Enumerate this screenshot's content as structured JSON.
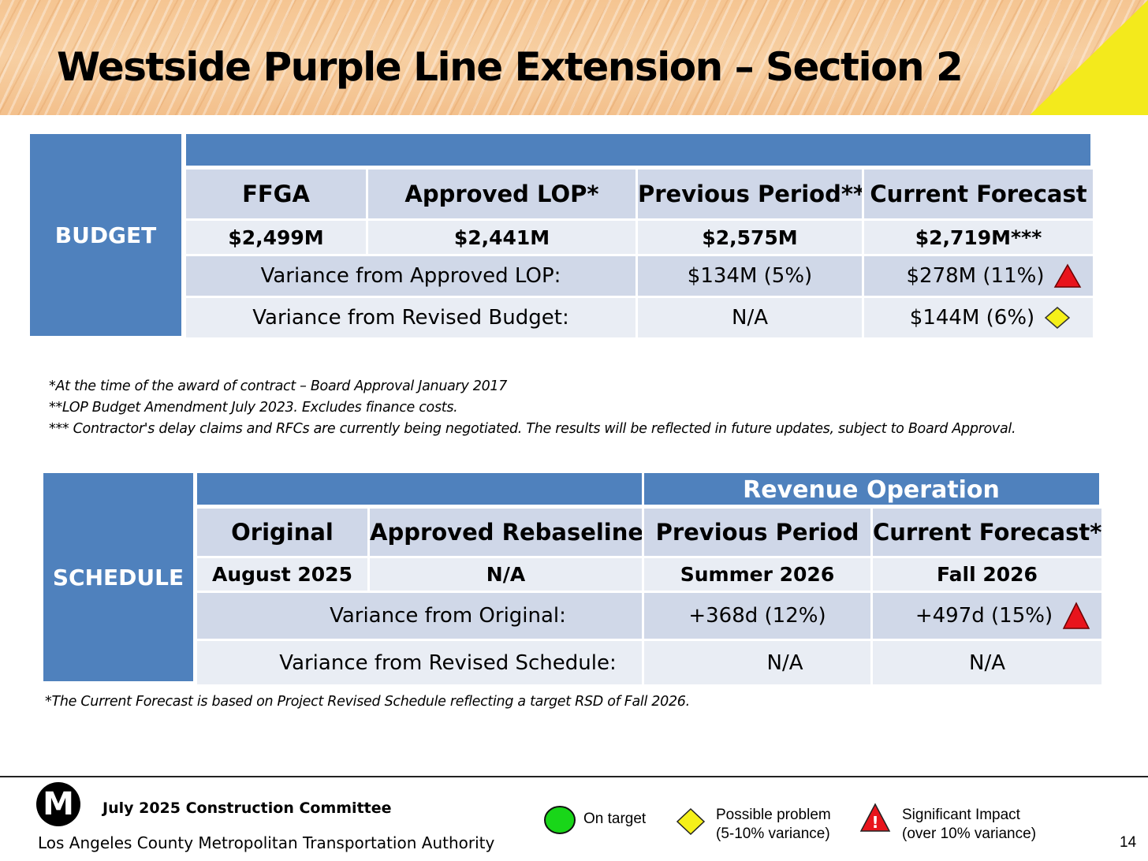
{
  "title": "Westside Purple Line Extension – Section 2",
  "budget": {
    "label": "BUDGET",
    "headers": [
      "FFGA",
      "Approved LOP*",
      "Previous Period**",
      "Current Forecast"
    ],
    "values": [
      "$2,499M",
      "$2,441M",
      "$2,575M",
      "$2,719M***"
    ],
    "variance_approved": {
      "label": "Variance from Approved LOP:",
      "previous": "$134M (5%)",
      "current": "$278M (11%)",
      "status_icon": "red-triangle-icon"
    },
    "variance_revised": {
      "label": "Variance from Revised Budget:",
      "previous": "N/A",
      "current": "$144M (6%)",
      "status_icon": "yellow-diamond-icon"
    }
  },
  "budget_notes": [
    "*At the time of the award of contract – Board Approval January 2017",
    "**LOP Budget Amendment July 2023. Excludes finance costs.",
    "*** Contractor's delay claims and RFCs are currently being negotiated.  The results will be reflected in future updates, subject to Board Approval."
  ],
  "schedule": {
    "label": "SCHEDULE",
    "revenue_header": "Revenue Operation",
    "headers": [
      "Original",
      "Approved Rebaseline",
      "Previous Period",
      "Current Forecast*"
    ],
    "values": [
      "August 2025",
      "N/A",
      "Summer 2026",
      "Fall 2026"
    ],
    "variance_original": {
      "label": "Variance from Original:",
      "previous": "+368d (12%)",
      "current": "+497d (15%)",
      "status_icon": "red-triangle-icon"
    },
    "variance_revised": {
      "label": "Variance from Revised Schedule:",
      "previous": "N/A",
      "current": "N/A"
    }
  },
  "schedule_note": "*The Current Forecast is based on Project Revised Schedule reflecting a target RSD of Fall 2026.",
  "footer": {
    "logo_letter": "M",
    "committee": "July 2025 Construction Committee",
    "agency": "Los Angeles County Metropolitan Transportation Authority",
    "page_number": "14",
    "legend": {
      "on_target": "On target",
      "possible_problem": [
        "Possible problem",
        "(5-10% variance)"
      ],
      "significant": [
        "Significant Impact",
        "(over 10% variance)"
      ]
    }
  },
  "colors": {
    "header_blue": "#4f81bd",
    "cell_dark": "#d0d8e8",
    "cell_light": "#e9edf4",
    "alert_red": "#e8141c",
    "warn_yellow": "#f5f019",
    "ok_green": "#19d619"
  }
}
